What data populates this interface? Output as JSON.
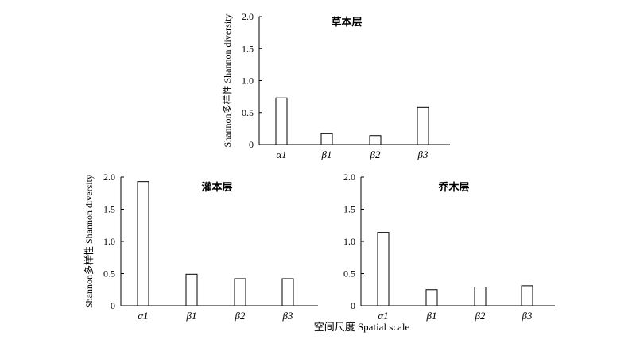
{
  "figure": {
    "xlabel": "空间尺度 Spatial scale"
  },
  "chart_data": [
    {
      "type": "bar",
      "title": "草本层",
      "ylabel": "Shannon多样性 Shannon diversity",
      "xlabel": "",
      "categories": [
        "α1",
        "β1",
        "β2",
        "β3"
      ],
      "values": [
        0.73,
        0.17,
        0.14,
        0.58
      ],
      "ylim": [
        0,
        2.0
      ],
      "yticks": [
        "0",
        "0.5",
        "1.0",
        "1.5",
        "2.0"
      ],
      "ytick_values": [
        0,
        0.5,
        1.0,
        1.5,
        2.0
      ],
      "grid": false
    },
    {
      "type": "bar",
      "title": "灌本层",
      "ylabel": "Shannon多样性 Shannon diversity",
      "xlabel": "",
      "categories": [
        "α1",
        "β1",
        "β2",
        "β3"
      ],
      "values": [
        1.93,
        0.49,
        0.42,
        0.42
      ],
      "ylim": [
        0,
        2.0
      ],
      "yticks": [
        "0",
        "0.5",
        "1.0",
        "1.5",
        "2.0"
      ],
      "ytick_values": [
        0,
        0.5,
        1.0,
        1.5,
        2.0
      ],
      "grid": false
    },
    {
      "type": "bar",
      "title": "乔木层",
      "ylabel": "",
      "xlabel": "",
      "categories": [
        "α1",
        "β1",
        "β2",
        "β3"
      ],
      "values": [
        1.14,
        0.25,
        0.29,
        0.31
      ],
      "ylim": [
        0,
        2.0
      ],
      "yticks": [
        "0",
        "0.5",
        "1.0",
        "1.5",
        "2.0"
      ],
      "ytick_values": [
        0,
        0.5,
        1.0,
        1.5,
        2.0
      ],
      "grid": false
    }
  ]
}
